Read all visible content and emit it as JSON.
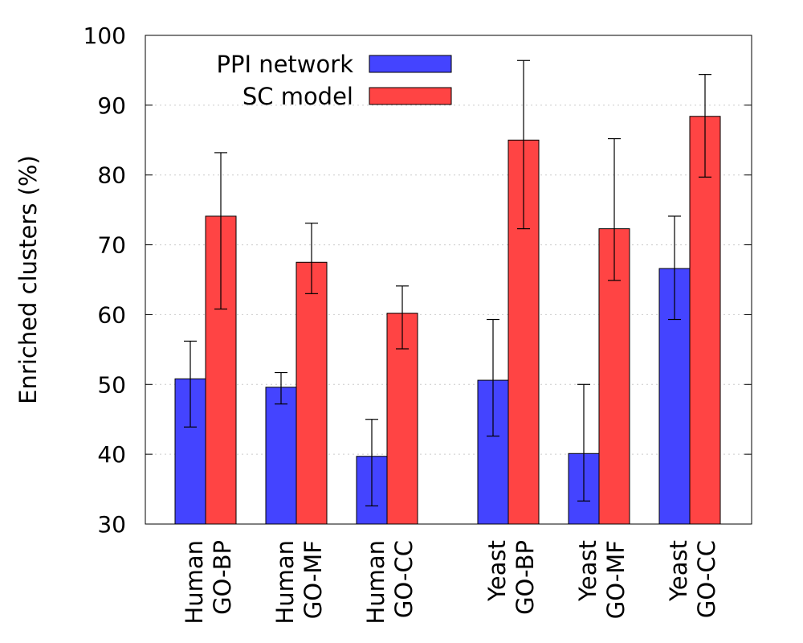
{
  "chart_data": {
    "type": "bar",
    "title": "",
    "xlabel": "",
    "ylabel": "Enriched clusters (%)",
    "ylim": [
      30,
      100
    ],
    "yticks": [
      "30",
      "40",
      "50",
      "60",
      "70",
      "80",
      "90",
      "100"
    ],
    "grid": true,
    "legend_position": "top-left",
    "categories": [
      {
        "line1": "Human",
        "line2": "GO-BP"
      },
      {
        "line1": "Human",
        "line2": "GO-MF"
      },
      {
        "line1": "Human",
        "line2": "GO-CC"
      },
      {
        "line1": "Yeast",
        "line2": "GO-BP"
      },
      {
        "line1": "Yeast",
        "line2": "GO-MF"
      },
      {
        "line1": "Yeast",
        "line2": "GO-CC"
      }
    ],
    "series": [
      {
        "name": "PPI network",
        "color": "#4444ff",
        "values": [
          50.8,
          49.6,
          39.7,
          50.6,
          40.1,
          66.6
        ],
        "err_low": [
          43.9,
          47.2,
          32.6,
          42.6,
          33.3,
          59.3
        ],
        "err_high": [
          56.2,
          51.7,
          45.0,
          59.3,
          50.0,
          74.1
        ]
      },
      {
        "name": "SC model",
        "color": "#ff4444",
        "values": [
          74.1,
          67.5,
          60.2,
          85.0,
          72.3,
          88.4
        ],
        "err_low": [
          60.8,
          63.0,
          55.1,
          72.3,
          64.9,
          79.7
        ],
        "err_high": [
          83.2,
          73.1,
          64.1,
          96.4,
          85.2,
          94.4
        ]
      }
    ]
  }
}
